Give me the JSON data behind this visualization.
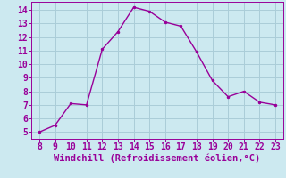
{
  "x": [
    8,
    9,
    10,
    11,
    12,
    13,
    14,
    15,
    16,
    17,
    18,
    19,
    20,
    21,
    22,
    23
  ],
  "y": [
    5.0,
    5.5,
    7.1,
    7.0,
    11.1,
    12.4,
    14.2,
    13.9,
    13.1,
    12.8,
    10.9,
    8.8,
    7.6,
    8.0,
    7.2,
    7.0
  ],
  "line_color": "#990099",
  "marker": ".",
  "marker_size": 3,
  "background_color": "#cce9f0",
  "grid_color": "#aacdd8",
  "xlabel": "Windchill (Refroidissement éolien,°C)",
  "xlabel_color": "#990099",
  "xlabel_fontsize": 7.5,
  "tick_color": "#990099",
  "tick_fontsize": 7,
  "ylim": [
    4.5,
    14.6
  ],
  "xlim": [
    7.5,
    23.5
  ],
  "yticks": [
    5,
    6,
    7,
    8,
    9,
    10,
    11,
    12,
    13,
    14
  ],
  "xticks": [
    8,
    9,
    10,
    11,
    12,
    13,
    14,
    15,
    16,
    17,
    18,
    19,
    20,
    21,
    22,
    23
  ]
}
